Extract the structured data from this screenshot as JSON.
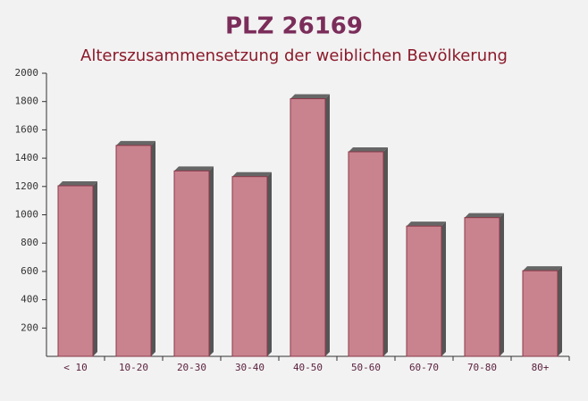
{
  "chart_data": {
    "type": "bar",
    "title": "PLZ 26169",
    "subtitle": "Alterszusammensetzung der weiblichen Bevölkerung",
    "categories": [
      "< 10",
      "10-20",
      "20-30",
      "30-40",
      "40-50",
      "50-60",
      "60-70",
      "70-80",
      "80+"
    ],
    "values": [
      1205,
      1490,
      1310,
      1270,
      1820,
      1445,
      920,
      980,
      605
    ],
    "color": "#c2707e",
    "ylim": [
      0,
      2000
    ],
    "yticks": [
      200,
      400,
      600,
      800,
      1000,
      1200,
      1400,
      1600,
      1800,
      2000
    ]
  }
}
